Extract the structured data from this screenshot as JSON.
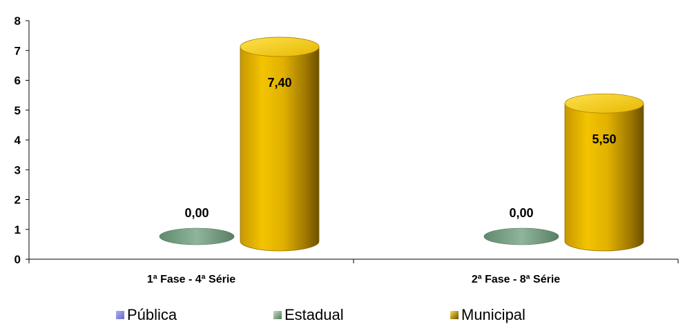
{
  "chart_data": {
    "type": "bar",
    "categories": [
      "1ª Fase - 4ª Série",
      "2ª Fase - 8ª Série"
    ],
    "series": [
      {
        "name": "Pública",
        "values": [
          null,
          null
        ],
        "color": "#8888dd"
      },
      {
        "name": "Estadual",
        "values": [
          0.0,
          0.0
        ],
        "labels": [
          "0,00",
          "0,00"
        ],
        "color": "#6f9b7e"
      },
      {
        "name": "Municipal",
        "values": [
          7.4,
          5.5
        ],
        "labels": [
          "7,40",
          "5,50"
        ],
        "color": "#e0b000"
      }
    ],
    "ylim": [
      0,
      8
    ],
    "yticks": [
      0,
      1,
      2,
      3,
      4,
      5,
      6,
      7,
      8
    ],
    "legend_position": "bottom"
  }
}
